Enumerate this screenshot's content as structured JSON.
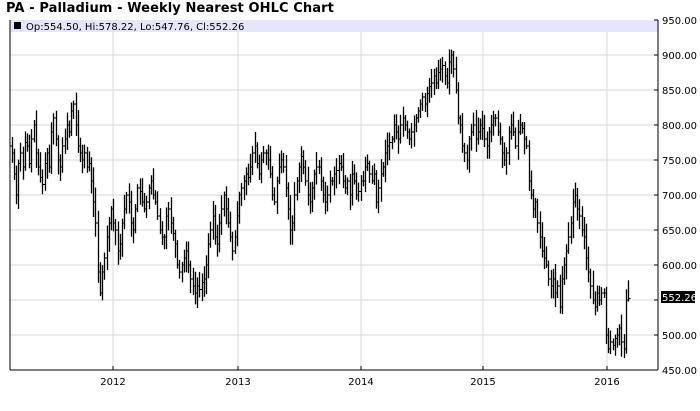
{
  "header": {
    "title": "PA - Palladium - Weekly Nearest OHLC Chart"
  },
  "legend": {
    "marker": "black-square",
    "text": "Op:554.50, Hi:578.22, Lo:547.76, Cl:552.26",
    "background": "#e6e6fa"
  },
  "last_price_label": "552.26",
  "colors": {
    "bars": "#000000",
    "grid": "#d9d9d9",
    "axis": "#000000",
    "legend_bg": "#e6e6fa",
    "last_price_bg": "#000000",
    "last_price_fg": "#ffffff"
  },
  "chart_data": {
    "type": "ohlc",
    "title": "PA - Palladium - Weekly Nearest OHLC Chart",
    "xlabel": "",
    "ylabel": "",
    "ylim": [
      450,
      950
    ],
    "y_ticks": [
      "950.00",
      "900.00",
      "850.00",
      "800.00",
      "750.00",
      "700.00",
      "650.00",
      "600.00",
      "500.00",
      "450.00"
    ],
    "y_ticks_values": [
      950,
      900,
      850,
      800,
      750,
      700,
      650,
      600,
      500,
      450
    ],
    "x_ticks": [
      "2012",
      "2013",
      "2014",
      "2015",
      "2016"
    ],
    "grid": true,
    "y_axis_position": "right",
    "last_bar": {
      "open": 554.5,
      "high": 578.22,
      "low": 547.76,
      "close": 552.26
    },
    "approx_weekly_close_series": {
      "start": "2011-04 (approx)",
      "frequency": "weekly",
      "values": [
        760,
        730,
        700,
        745,
        760,
        740,
        775,
        770,
        745,
        780,
        800,
        760,
        740,
        725,
        715,
        745,
        760,
        740,
        790,
        810,
        780,
        750,
        740,
        770,
        780,
        800,
        790,
        820,
        830,
        800,
        770,
        760,
        750,
        760,
        740,
        745,
        720,
        690,
        660,
        590,
        560,
        590,
        610,
        640,
        660,
        680,
        660,
        650,
        620,
        630,
        660,
        680,
        700,
        690,
        660,
        650,
        680,
        710,
        705,
        690,
        680,
        690,
        710,
        720,
        700,
        690,
        670,
        650,
        640,
        640,
        670,
        680,
        660,
        645,
        630,
        600,
        590,
        600,
        610,
        620,
        600,
        580,
        570,
        560,
        570,
        565,
        575,
        580,
        600,
        630,
        650,
        670,
        640,
        630,
        660,
        680,
        700,
        680,
        660,
        640,
        620,
        640,
        670,
        700,
        710,
        720,
        730,
        725,
        740,
        760,
        770,
        745,
        730,
        750,
        760,
        760,
        750,
        730,
        700,
        690,
        720,
        740,
        750,
        740,
        710,
        680,
        650,
        660,
        700,
        720,
        740,
        755,
        740,
        720,
        700,
        690,
        710,
        730,
        740,
        740,
        720,
        700,
        690,
        700,
        720,
        720,
        730,
        735,
        745,
        740,
        720,
        710,
        720,
        700,
        730,
        720,
        700,
        705,
        720,
        720,
        740,
        745,
        730,
        720,
        730,
        690,
        710,
        730,
        740,
        760,
        770,
        775,
        780,
        800,
        790,
        780,
        800,
        810,
        800,
        790,
        780,
        790,
        800,
        810,
        820,
        830,
        840,
        830,
        845,
        855,
        860,
        870,
        860,
        875,
        880,
        885,
        870,
        860,
        890,
        900,
        880,
        850,
        810,
        800,
        770,
        760,
        750,
        780,
        790,
        800,
        780,
        790,
        800,
        795,
        780,
        770,
        790,
        800,
        810,
        810,
        790,
        780,
        760,
        750,
        760,
        790,
        800,
        790,
        770,
        790,
        800,
        795,
        780,
        770,
        720,
        700,
        680,
        690,
        660,
        640,
        620,
        610,
        600,
        580,
        570,
        580,
        560,
        570,
        540,
        580,
        600,
        620,
        640,
        660,
        690,
        700,
        680,
        670,
        650,
        640,
        610,
        590,
        570,
        550,
        540,
        560,
        550,
        560,
        560,
        500,
        480,
        490,
        485,
        495,
        500,
        510,
        490,
        480,
        550,
        552
      ]
    }
  }
}
